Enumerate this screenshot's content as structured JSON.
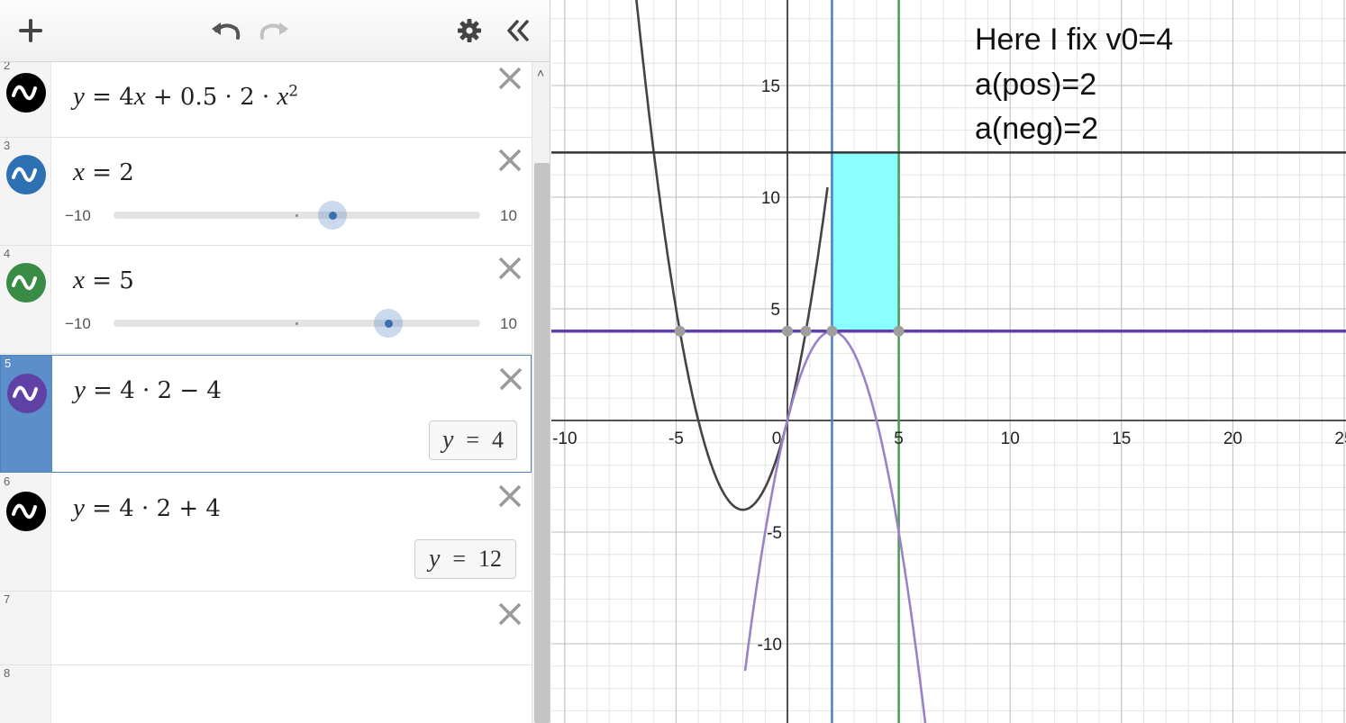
{
  "toolbar": {
    "add_icon": "plus-icon",
    "undo_icon": "undo-icon",
    "redo_icon": "redo-icon",
    "settings_icon": "gear-icon",
    "collapse_icon": "double-chevron-left-icon"
  },
  "expressions": [
    {
      "index": "2",
      "color": "#000000",
      "formula_parts": [
        "y",
        " = 4",
        "x",
        " + 0.5 · 2 · ",
        "x"
      ],
      "superscript": "2"
    },
    {
      "index": "3",
      "color": "#2d70b3",
      "var": "x",
      "rest": " = 2",
      "slider": {
        "min": "−10",
        "max": "10",
        "value": 2
      }
    },
    {
      "index": "4",
      "color": "#388c46",
      "var": "x",
      "rest": " = 5",
      "slider": {
        "min": "−10",
        "max": "10",
        "value": 5
      }
    },
    {
      "index": "5",
      "color": "#6042a6",
      "var": "y",
      "rest": " = 4 · 2 − 4",
      "eval": {
        "var": "y",
        "eq": "=",
        "value": "4"
      },
      "selected": true
    },
    {
      "index": "6",
      "color": "#000000",
      "var": "y",
      "rest": " = 4 · 2 + 4",
      "eval": {
        "var": "y",
        "eq": "=",
        "value": "12"
      }
    },
    {
      "index": "7"
    },
    {
      "index": "8"
    }
  ],
  "graph": {
    "x_ticks": [
      "-10",
      "-5",
      "0",
      "5",
      "10",
      "15",
      "20",
      "25"
    ],
    "y_ticks_pos": [
      "5",
      "10",
      "15"
    ],
    "y_ticks_neg": [
      "-5",
      "-10"
    ],
    "notes": [
      "Here I fix v0=4",
      "a(pos)=2",
      "a(neg)=2"
    ],
    "colors": {
      "parabola_up": "#444444",
      "parabola_down": "#9a82c8",
      "line_y4": "#6042a6",
      "line_y12": "#333333",
      "line_x2": "#4a7fc0",
      "line_x5": "#4a9a58",
      "shaded_rect": "#8affff",
      "point": "#9e9e9e"
    },
    "chart_data": {
      "type": "line",
      "series": [],
      "x_view": [
        -10.5,
        25
      ],
      "y_view": [
        -13.5,
        19
      ],
      "shaded": {
        "x": [
          2,
          5
        ],
        "y": [
          4,
          12
        ]
      },
      "points": [
        [
          -4.83,
          4
        ],
        [
          0,
          4
        ],
        [
          0.83,
          4
        ],
        [
          2,
          4
        ],
        [
          5,
          4
        ]
      ]
    }
  }
}
